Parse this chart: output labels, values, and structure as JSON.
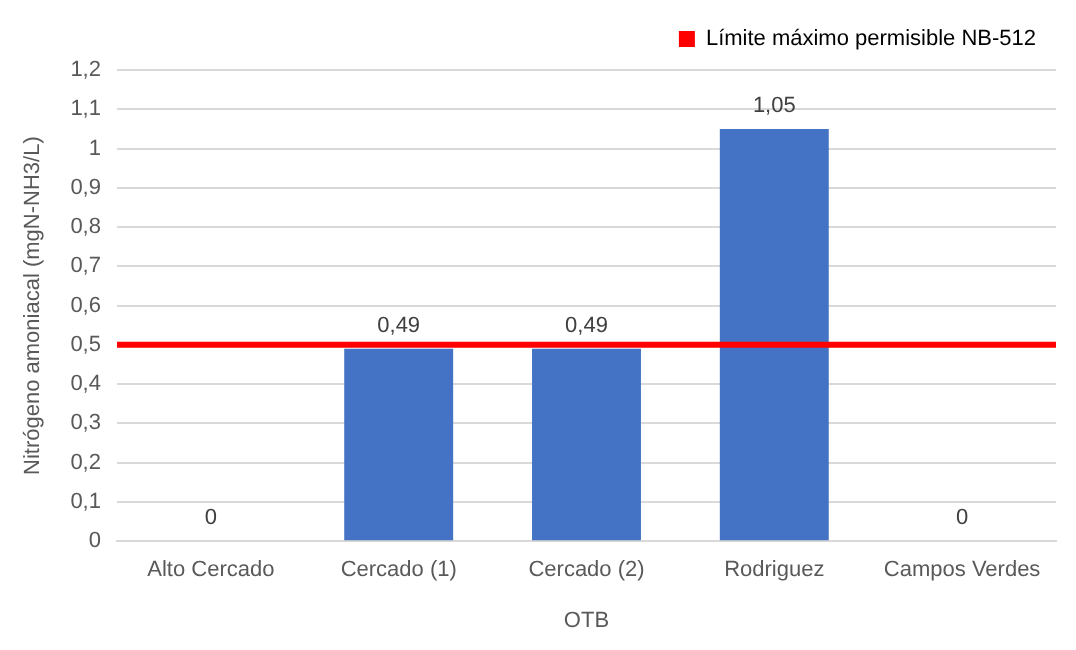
{
  "chart_data": {
    "type": "bar",
    "xlabel": "OTB",
    "ylabel": "Nitrógeno amoniacal (mgN-NH3/L)",
    "categories": [
      "Alto Cercado",
      "Cercado (1)",
      "Cercado (2)",
      "Rodriguez",
      "Campos Verdes"
    ],
    "values": [
      0,
      0.49,
      0.49,
      1.05,
      0
    ],
    "value_labels": [
      "0",
      "0,49",
      "0,49",
      "1,05",
      "0"
    ],
    "color": "#4472c4",
    "ylim": [
      0,
      1.2
    ],
    "yticks": [
      0,
      {
        "value": 0.1,
        "label": "0,1"
      },
      {
        "value": 0.2,
        "label": "0,2"
      },
      {
        "value": 0.3,
        "label": "0,3"
      },
      {
        "value": 0.4,
        "label": "0,4"
      },
      {
        "value": 0.5,
        "label": "0,5"
      },
      {
        "value": 0.6,
        "label": "0,6"
      },
      {
        "value": 0.7,
        "label": "0,7"
      },
      {
        "value": 0.8,
        "label": "0,8"
      },
      {
        "value": 0.9,
        "label": "0,9"
      },
      1,
      {
        "value": 1.1,
        "label": "1,1"
      },
      {
        "value": 1.2,
        "label": "1,2"
      }
    ],
    "ref_lines": [
      {
        "axis": "y",
        "value": 0.5,
        "label": "Límite máximo permisible NB-512",
        "color": "#ff0000"
      }
    ],
    "grid": "y",
    "legend": "top right"
  }
}
